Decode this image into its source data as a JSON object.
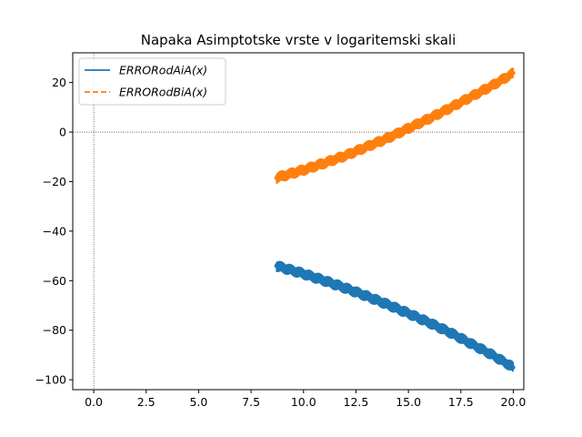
{
  "chart_data": {
    "type": "line",
    "title": "Napaka Asimptotske vrste v logaritemski skali",
    "xlabel": "",
    "ylabel": "",
    "xlim": [
      -1.0,
      20.5
    ],
    "ylim": [
      -104,
      32
    ],
    "xticks": [
      0.0,
      2.5,
      5.0,
      7.5,
      10.0,
      12.5,
      15.0,
      17.5,
      20.0
    ],
    "xtick_labels": [
      "0.0",
      "2.5",
      "5.0",
      "7.5",
      "10.0",
      "12.5",
      "15.0",
      "17.5",
      "20.0"
    ],
    "yticks": [
      20,
      0,
      -20,
      -40,
      -60,
      -80,
      -100
    ],
    "ytick_labels": [
      "20",
      "0",
      "−20",
      "−40",
      "−60",
      "−80",
      "−100"
    ],
    "grid": false,
    "reference_lines": {
      "x": 0,
      "y": 0,
      "style": "dotted"
    },
    "legend": {
      "placement": "top-left"
    },
    "series": [
      {
        "name": "ERRORodAiA(x)",
        "color": "#1f77b4",
        "style": "solid",
        "band": 2.2,
        "x": [
          8.7,
          10.0,
          11.0,
          12.0,
          13.0,
          14.0,
          15.0,
          16.0,
          17.0,
          18.0,
          19.0,
          20.0
        ],
        "values": [
          -54.0,
          -57.2,
          -60.0,
          -63.0,
          -66.2,
          -69.6,
          -73.2,
          -77.0,
          -81.0,
          -85.5,
          -90.0,
          -95.0
        ]
      },
      {
        "name": "ERRORodBiA(x)",
        "color": "#ff7f0e",
        "style": "dashed",
        "band": 2.2,
        "x": [
          8.7,
          10.0,
          11.0,
          12.0,
          13.0,
          14.0,
          15.0,
          16.0,
          17.0,
          18.0,
          19.0,
          20.0
        ],
        "values": [
          -18.5,
          -15.3,
          -12.5,
          -9.5,
          -6.0,
          -2.5,
          1.5,
          5.5,
          9.8,
          14.3,
          18.8,
          23.8
        ]
      }
    ]
  }
}
